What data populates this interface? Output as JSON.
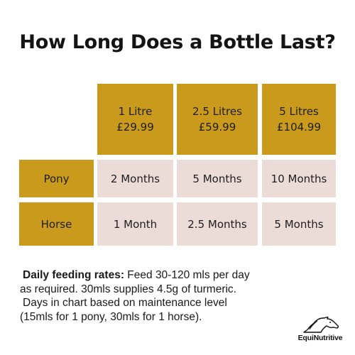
{
  "title": "How Long Does a Bottle Last?",
  "colors": {
    "gold": "#c99a1c",
    "pink": "#ecdcd8"
  },
  "table": {
    "columns": [
      {
        "size": "1 Litre",
        "price": "£29.99"
      },
      {
        "size": "2.5 Litres",
        "price": "£59.99"
      },
      {
        "size": "5 Litres",
        "price": "£104.99"
      }
    ],
    "rows": [
      {
        "label": "Pony",
        "values": [
          "2 Months",
          "5 Months",
          "10 Months"
        ]
      },
      {
        "label": "Horse",
        "values": [
          "1 Month",
          "2.5 Months",
          "5 Months"
        ]
      }
    ]
  },
  "footnote": {
    "bold_lead": "Daily feeding rates:",
    "line1_rest": " Feed 30-120 mls per day",
    "line2": "as required. 30mls supplies 4.5g of turmeric.",
    "line3": "Days in chart based on maintenance level",
    "line4": "(15mls for 1 pony, 30mls for 1 horse)."
  },
  "logo": {
    "text": "EquiNutritive",
    "icon": "horse-head-icon"
  }
}
